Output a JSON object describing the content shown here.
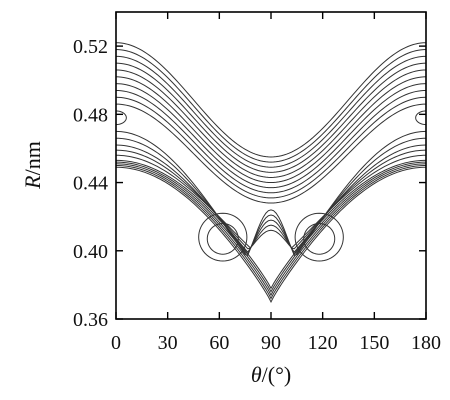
{
  "chart_data": {
    "type": "contour",
    "title": "",
    "xlabel": {
      "symbol": "θ",
      "unit": "/(°)"
    },
    "ylabel": {
      "symbol": "R",
      "unit": "/nm"
    },
    "xlim": [
      0,
      180
    ],
    "ylim": [
      0.36,
      0.54
    ],
    "xticks": [
      0,
      30,
      60,
      90,
      120,
      150,
      180
    ],
    "xtick_labels": [
      "0",
      "30",
      "60",
      "90",
      "120",
      "150",
      "180"
    ],
    "yticks": [
      0.36,
      0.4,
      0.44,
      0.48,
      0.52
    ],
    "ytick_labels": [
      "0.36",
      "0.40",
      "0.44",
      "0.48",
      "0.52"
    ],
    "grid": false,
    "legend": "none",
    "line_color": "#333333",
    "surface": {
      "description_of_shape": "symmetric about theta = 90",
      "well_floor_R_at_90": 0.372,
      "local_minima": [
        {
          "theta": 62,
          "R": 0.407
        },
        {
          "theta": 118,
          "R": 0.407
        }
      ],
      "edge_island": [
        {
          "theta": 0,
          "R": 0.478
        },
        {
          "theta": 180,
          "R": 0.478
        }
      ]
    },
    "upper_contours": [
      {
        "R_at_0": 0.522,
        "R_at_90": 0.455
      },
      {
        "R_at_0": 0.518,
        "R_at_90": 0.452
      },
      {
        "R_at_0": 0.514,
        "R_at_90": 0.449
      },
      {
        "R_at_0": 0.51,
        "R_at_90": 0.446
      },
      {
        "R_at_0": 0.506,
        "R_at_90": 0.443
      },
      {
        "R_at_0": 0.502,
        "R_at_90": 0.44
      },
      {
        "R_at_0": 0.498,
        "R_at_90": 0.437
      },
      {
        "R_at_0": 0.494,
        "R_at_90": 0.434
      },
      {
        "R_at_0": 0.49,
        "R_at_90": 0.431
      },
      {
        "R_at_0": 0.486,
        "R_at_90": 0.428
      }
    ],
    "band_contours": [
      {
        "R_at_0": 0.47,
        "R_at_90": 0.424,
        "R_bottom": 0.38
      },
      {
        "R_at_0": 0.466,
        "R_at_90": 0.421,
        "R_bottom": 0.383
      },
      {
        "R_at_0": 0.462,
        "R_at_90": 0.418,
        "R_bottom": 0.386
      },
      {
        "R_at_0": 0.459,
        "R_at_90": 0.415,
        "R_bottom": 0.389
      },
      {
        "R_at_0": 0.456,
        "R_at_90": 0.412,
        "R_bottom": 0.392
      }
    ],
    "bottom_contours": [
      {
        "R_at_0": 0.453,
        "R_at_90": 0.378
      },
      {
        "R_at_0": 0.452,
        "R_at_90": 0.376
      },
      {
        "R_at_0": 0.451,
        "R_at_90": 0.374
      },
      {
        "R_at_0": 0.45,
        "R_at_90": 0.372
      },
      {
        "R_at_0": 0.449,
        "R_at_90": 0.37
      }
    ],
    "well_loops": [
      {
        "theta_center": 62,
        "R_center": 0.407,
        "theta_halfwidth": 9,
        "R_halfwidth": 0.009
      },
      {
        "theta_center": 62,
        "R_center": 0.408,
        "theta_halfwidth": 14,
        "R_halfwidth": 0.014
      },
      {
        "theta_center": 118,
        "R_center": 0.407,
        "theta_halfwidth": 9,
        "R_halfwidth": 0.009
      },
      {
        "theta_center": 118,
        "R_center": 0.408,
        "theta_halfwidth": 14,
        "R_halfwidth": 0.014
      }
    ],
    "edge_loops": [
      {
        "theta_center": 0,
        "R_center": 0.478,
        "theta_halfwidth": 6,
        "R_halfwidth": 0.004
      },
      {
        "theta_center": 180,
        "R_center": 0.478,
        "theta_halfwidth": 6,
        "R_halfwidth": 0.004
      }
    ]
  }
}
